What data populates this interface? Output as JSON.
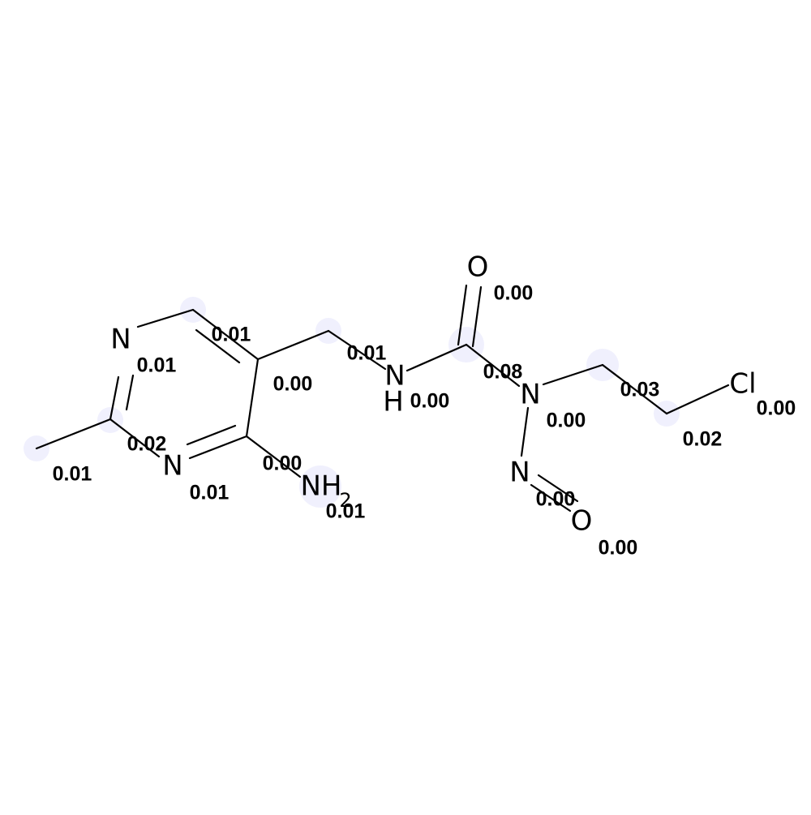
{
  "molecule": {
    "atoms": {
      "n_ring_top": "N",
      "n_ring_bottom": "N",
      "n_amide": "N",
      "h_amide": "H",
      "o_carbonyl": "O",
      "n_nitroso_bearing": "N",
      "n_nitroso": "N",
      "o_nitroso": "O",
      "cl": "Cl",
      "nh2_main": "NH",
      "nh2_sub": "2"
    },
    "contributions": {
      "methyl": "0.01",
      "c2_ring": "0.02",
      "n3_ring": "0.01",
      "n1_ring": "0.01",
      "c6_ring": "0.01",
      "c5_ring": "0.00",
      "c4_ring": "0.00",
      "nh2": "0.01",
      "ch2_linker": "0.01",
      "nh": "0.00",
      "c_carbonyl": "0.08",
      "o_carbonyl": "0.00",
      "n_urea": "0.00",
      "n_nitroso": "0.00",
      "o_nitroso": "0.00",
      "ch2_a": "0.03",
      "ch2_b": "0.02",
      "cl": "0.00"
    },
    "highlight_color": "#e4e4fb"
  }
}
